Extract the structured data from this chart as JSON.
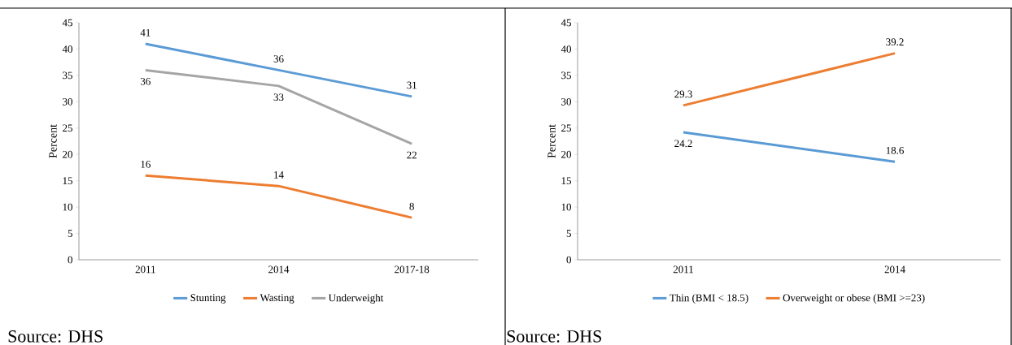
{
  "chart_data": [
    {
      "type": "line",
      "categories": [
        "2011",
        "2014",
        "2017-18"
      ],
      "ylabel": "Percent",
      "ylim": [
        0,
        45
      ],
      "yticks": [
        0,
        5,
        10,
        15,
        20,
        25,
        30,
        35,
        40,
        45
      ],
      "legend": "bottom",
      "data_labels": true,
      "grid": false,
      "annotations": [
        "Source: DHS"
      ],
      "series": [
        {
          "name": "Stunting",
          "color": "#5b9bd5",
          "values": [
            41,
            36,
            31
          ]
        },
        {
          "name": "Wasting",
          "color": "#ed7d31",
          "values": [
            16,
            14,
            8
          ]
        },
        {
          "name": "Underweight",
          "color": "#a5a5a5",
          "values": [
            36,
            33,
            22
          ]
        }
      ]
    },
    {
      "type": "line",
      "categories": [
        "2011",
        "2014"
      ],
      "ylabel": "Percent",
      "ylim": [
        0,
        45
      ],
      "yticks": [
        0,
        5,
        10,
        15,
        20,
        25,
        30,
        35,
        40,
        45
      ],
      "legend": "bottom",
      "data_labels": true,
      "grid": false,
      "annotations": [
        "Source: DHS"
      ],
      "series": [
        {
          "name": "Thin (BMI < 18.5)",
          "color": "#5b9bd5",
          "values": [
            24.2,
            18.6
          ]
        },
        {
          "name": "Overweight or obese (BMI >=23)",
          "color": "#ed7d31",
          "values": [
            29.3,
            39.2
          ]
        }
      ]
    }
  ]
}
